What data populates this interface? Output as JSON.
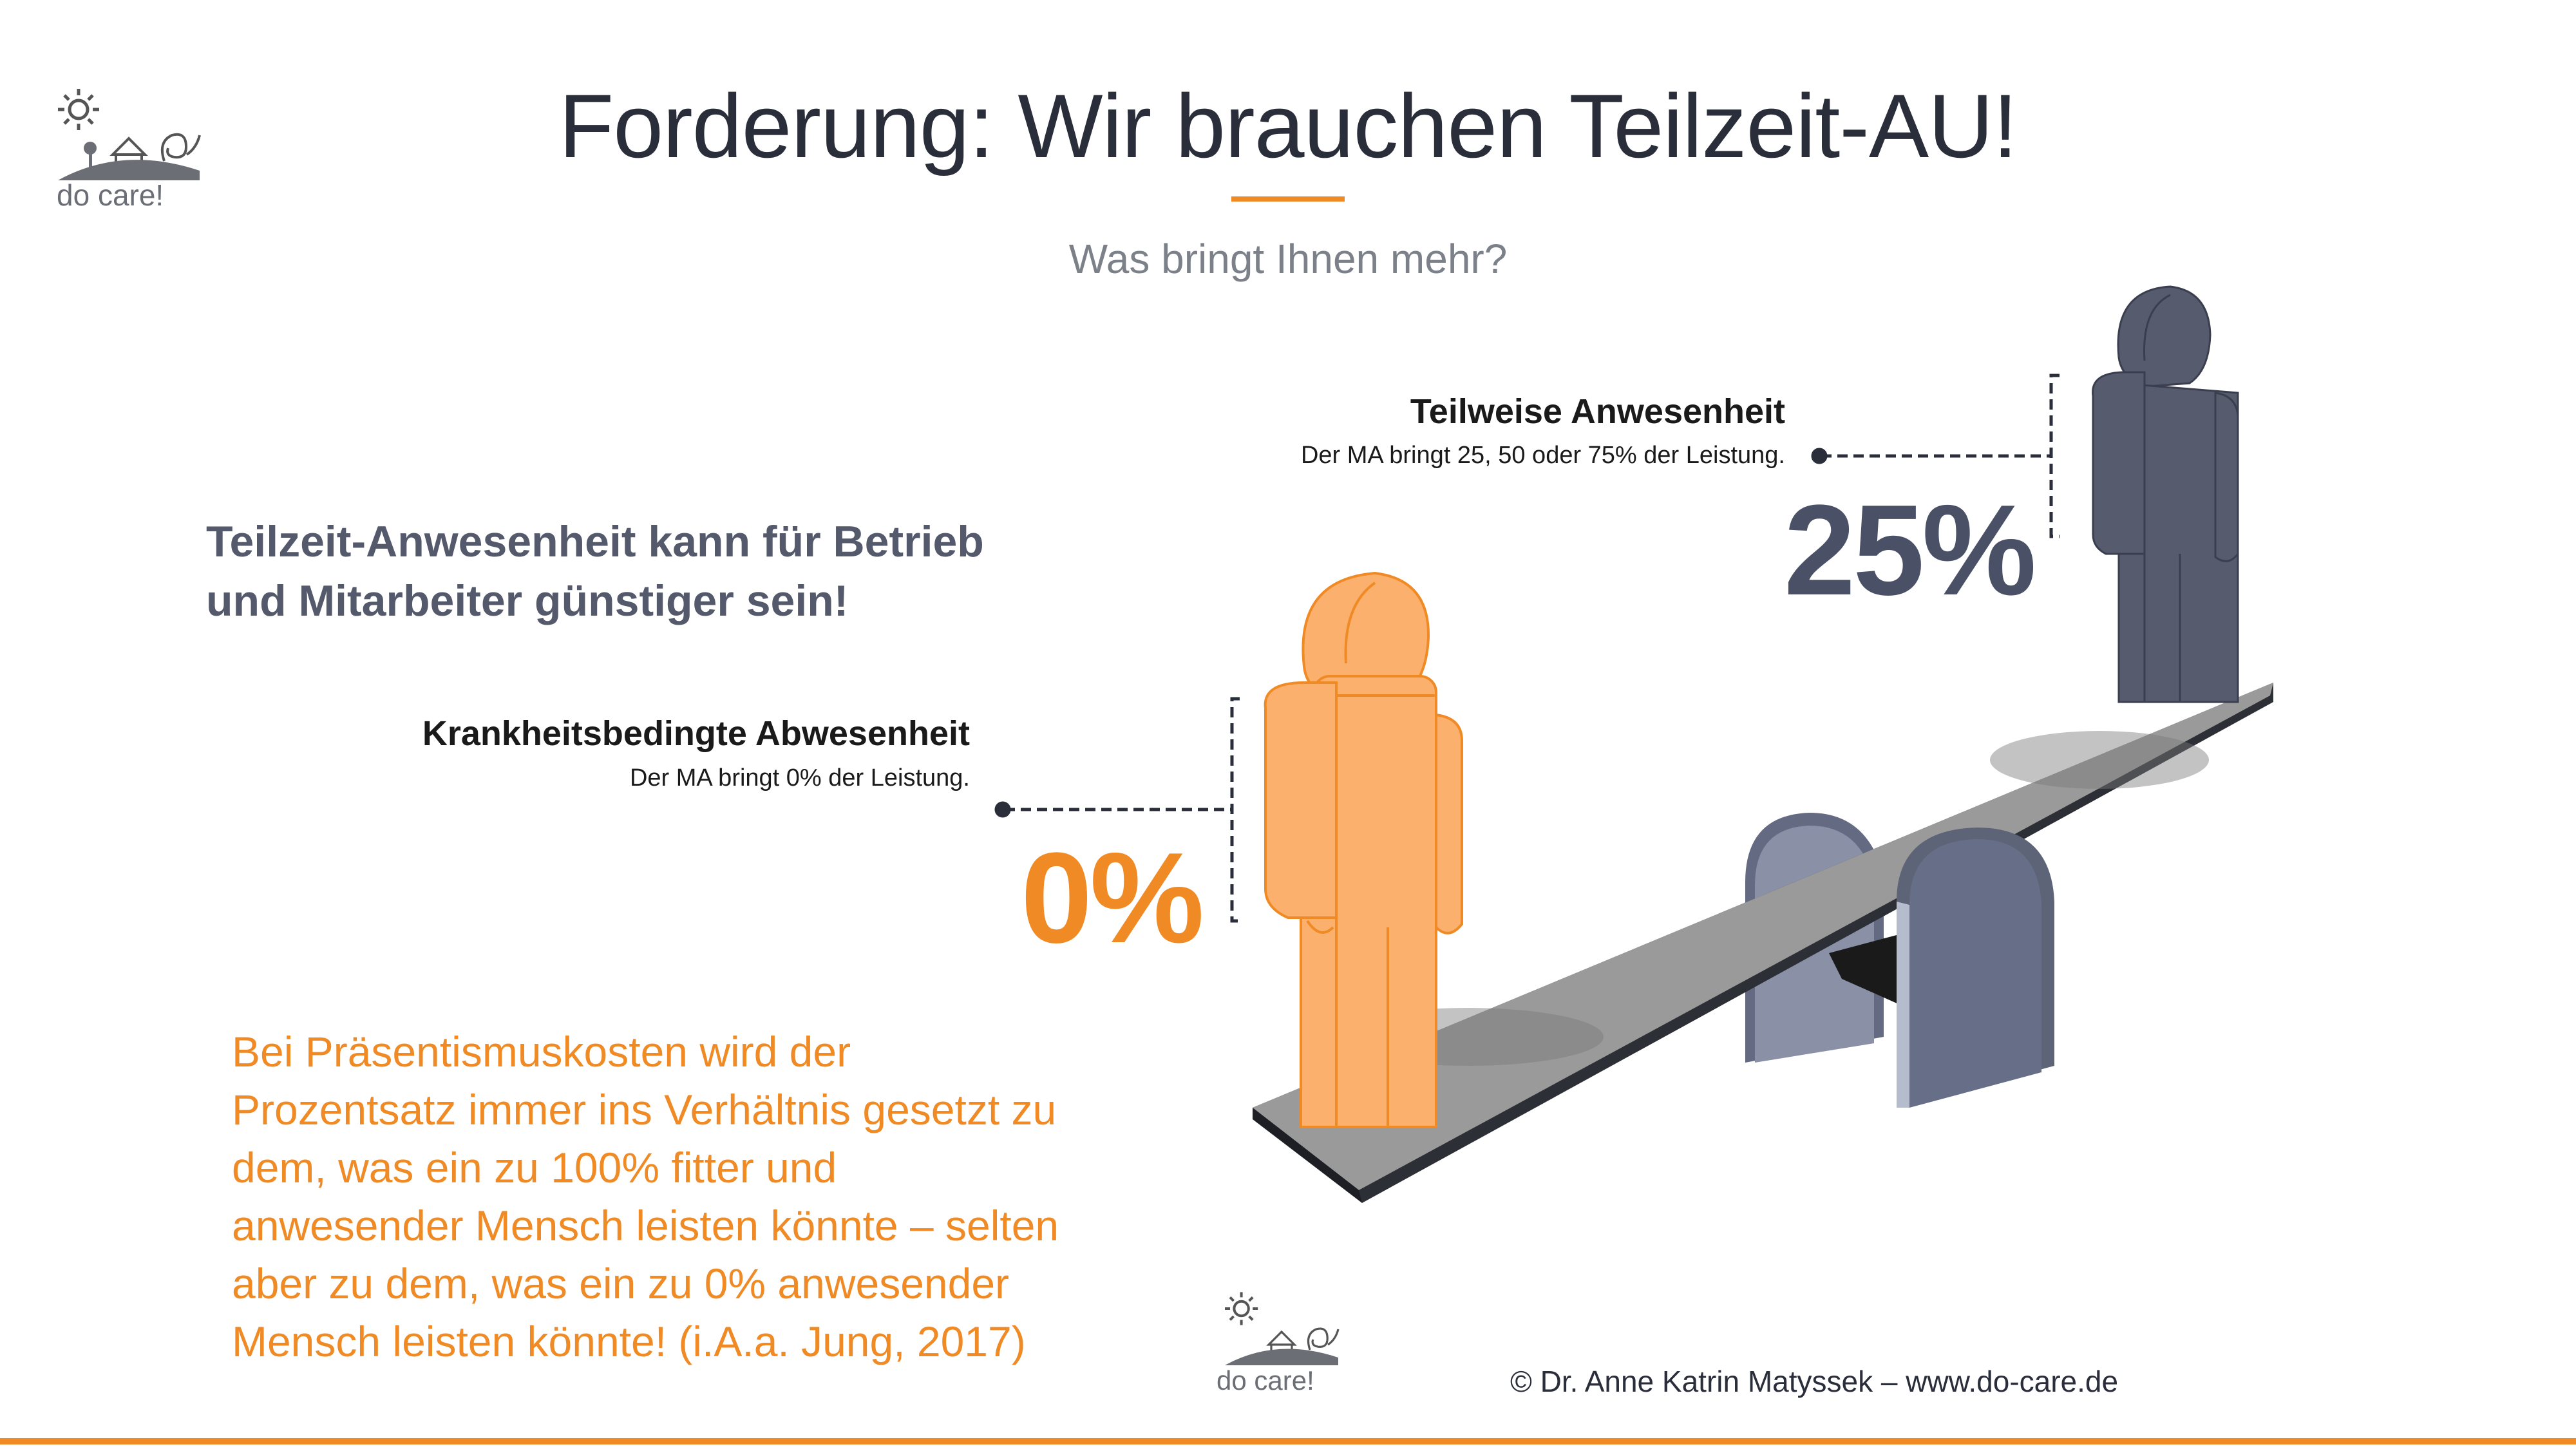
{
  "slide": {
    "title": "Forderung: Wir brauchen Teilzeit-AU!",
    "subtitle": "Was bringt Ihnen mehr?",
    "claim_line1": "Teilzeit-Anwesenheit kann für Betrieb",
    "claim_line2": "und Mitarbeiter günstiger sein!",
    "absence": {
      "heading": "Krankheitsbedingte Abwesenheit",
      "description": "Der MA bringt 0% der Leistung.",
      "percent": "0%"
    },
    "partial": {
      "heading": "Teilweise Anwesenheit",
      "description": "Der MA bringt 25, 50 oder 75% der Leistung.",
      "percent": "25%"
    },
    "note_lines": [
      "Bei Präsentismuskosten wird der",
      "Prozentsatz immer ins Verhältnis gesetzt zu",
      "dem, was ein zu 100% fitter und",
      "anwesender Mensch leisten könnte – selten",
      "aber zu dem, was ein zu 0% anwesender",
      "Mensch leisten könnte! (i.A.a. Jung, 2017)"
    ],
    "copyright": "© Dr. Anne Katrin Matyssek – www.do-care.de"
  },
  "logo": {
    "text": "do care!"
  },
  "colors": {
    "accent": "#ef8a24",
    "orange_figure": "#fbb06d",
    "dark_figure": "#565b6e",
    "title": "#2a2d3a"
  },
  "icons": [
    "sun-icon",
    "house-icon",
    "snail-icon",
    "seesaw-illustration",
    "person-figure"
  ]
}
